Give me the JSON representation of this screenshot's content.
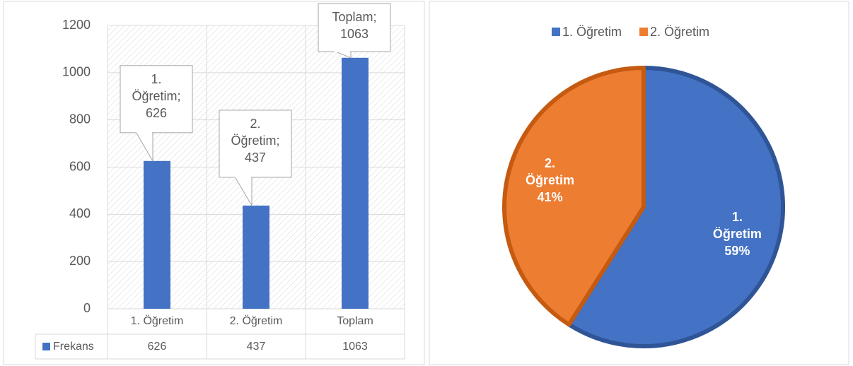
{
  "chart_data": [
    {
      "type": "bar",
      "categories": [
        "1. Öğretim",
        "2. Öğretim",
        "Toplam"
      ],
      "series": [
        {
          "name": "Frekans",
          "color": "#4472c4",
          "values": [
            626,
            437,
            1063
          ]
        }
      ],
      "ylim": [
        0,
        1200
      ],
      "yticks": [
        0,
        200,
        400,
        600,
        800,
        1000,
        1200
      ],
      "grid": true
    },
    {
      "type": "pie",
      "categories": [
        "1. Öğretim",
        "2. Öğretim"
      ],
      "values": [
        59,
        41
      ],
      "value_labels": [
        "59%",
        "41%"
      ],
      "colors": [
        "#4472c4",
        "#ed7d31"
      ],
      "legend": "top"
    }
  ]
}
